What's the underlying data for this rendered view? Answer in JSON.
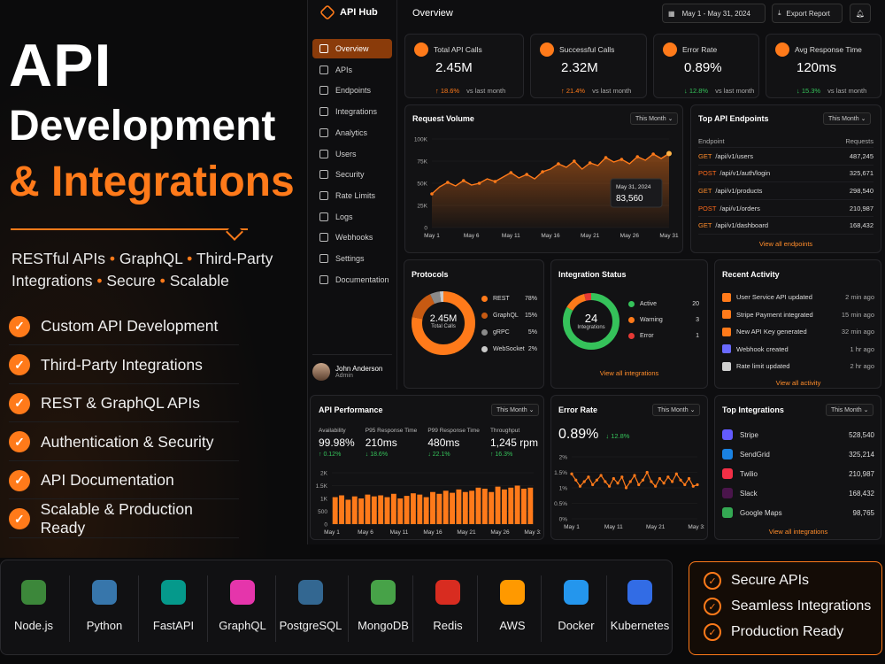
{
  "hero": {
    "title1": "API",
    "title2": "Development",
    "title3": "& Integrations",
    "subtitle_parts": [
      "RESTful APIs",
      "GraphQL",
      "Third-Party",
      "Integrations",
      "Secure",
      "Scalable"
    ],
    "features": [
      "Custom API Development",
      "Third-Party Integrations",
      "REST & GraphQL APIs",
      "Authentication & Security",
      "API Documentation",
      "Scalable & Production Ready"
    ],
    "accent": "#ff7a1a"
  },
  "app": {
    "name": "API Hub",
    "page_title": "Overview",
    "date_range": "May 1 - May 31, 2024",
    "export_label": "Export Report",
    "nav": [
      "Overview",
      "APIs",
      "Endpoints",
      "Integrations",
      "Analytics",
      "Users",
      "Security",
      "Rate Limits",
      "Logs",
      "Webhooks",
      "Settings",
      "Documentation"
    ],
    "user": {
      "name": "John Anderson",
      "role": "Admin"
    }
  },
  "kpis": [
    {
      "label": "Total API Calls",
      "value": "2.45M",
      "delta": "↑ 18.6%",
      "suffix": "vs last month"
    },
    {
      "label": "Successful Calls",
      "value": "2.32M",
      "delta": "↑ 21.4%",
      "suffix": "vs last month"
    },
    {
      "label": "Error Rate",
      "value": "0.89%",
      "delta": "↓ 12.8%",
      "suffix": "vs last month"
    },
    {
      "label": "Avg Response Time",
      "value": "120ms",
      "delta": "↓ 15.3%",
      "suffix": "vs last month"
    }
  ],
  "request_volume": {
    "title": "Request Volume",
    "period": "This Month",
    "tooltip_date": "May 31, 2024",
    "tooltip_value": "83,560"
  },
  "top_endpoints": {
    "title": "Top API Endpoints",
    "period": "This Month",
    "col_endpoint": "Endpoint",
    "col_requests": "Requests",
    "rows": [
      {
        "method": "GET",
        "path": "/api/v1/users",
        "requests": "487,245"
      },
      {
        "method": "POST",
        "path": "/api/v1/auth/login",
        "requests": "325,671"
      },
      {
        "method": "GET",
        "path": "/api/v1/products",
        "requests": "298,540"
      },
      {
        "method": "POST",
        "path": "/api/v1/orders",
        "requests": "210,987"
      },
      {
        "method": "GET",
        "path": "/api/v1/dashboard",
        "requests": "168,432"
      }
    ],
    "link": "View all endpoints"
  },
  "protocols": {
    "title": "Protocols",
    "center_value": "2.45M",
    "center_label": "Total Calls",
    "items": [
      {
        "name": "REST",
        "pct": "78%",
        "color": "#ff7a1a",
        "value": 78
      },
      {
        "name": "GraphQL",
        "pct": "15%",
        "color": "#c75a12",
        "value": 15
      },
      {
        "name": "gRPC",
        "pct": "5%",
        "color": "#8a8a8a",
        "value": 5
      },
      {
        "name": "WebSocket",
        "pct": "2%",
        "color": "#c9c9c9",
        "value": 2
      }
    ]
  },
  "integration_status": {
    "title": "Integration Status",
    "center_value": "24",
    "center_label": "Integrations",
    "items": [
      {
        "name": "Active",
        "count": "20",
        "color": "#35c25a",
        "value": 20
      },
      {
        "name": "Warning",
        "count": "3",
        "color": "#ff7a1a",
        "value": 3
      },
      {
        "name": "Error",
        "count": "1",
        "color": "#e53935",
        "value": 1
      }
    ],
    "link": "View all integrations"
  },
  "recent_activity": {
    "title": "Recent Activity",
    "items": [
      {
        "text": "User Service API updated",
        "time": "2 min ago",
        "color": "#ff7a1a"
      },
      {
        "text": "Stripe Payment integrated",
        "time": "15 min ago",
        "color": "#ff7a1a"
      },
      {
        "text": "New API Key generated",
        "time": "32 min ago",
        "color": "#ff7a1a"
      },
      {
        "text": "Webhook created",
        "time": "1 hr ago",
        "color": "#6a6aff"
      },
      {
        "text": "Rate limit updated",
        "time": "2 hr ago",
        "color": "#cfcfcf"
      }
    ],
    "link": "View all activity"
  },
  "api_performance": {
    "title": "API Performance",
    "period": "This Month",
    "metrics": [
      {
        "label": "Availability",
        "value": "99.98%",
        "delta": "↑ 0.12%"
      },
      {
        "label": "P95 Response Time",
        "value": "210ms",
        "delta": "↓ 18.6%"
      },
      {
        "label": "P99 Response Time",
        "value": "480ms",
        "delta": "↓ 22.1%"
      },
      {
        "label": "Throughput",
        "value": "1,245 rpm",
        "delta": "↑ 16.3%"
      }
    ]
  },
  "error_rate": {
    "title": "Error Rate",
    "period": "This Month",
    "value": "0.89%",
    "delta": "↓ 12.8%"
  },
  "top_integrations": {
    "title": "Top Integrations",
    "period": "This Month",
    "rows": [
      {
        "name": "Stripe",
        "value": "528,540",
        "color": "#635bff"
      },
      {
        "name": "SendGrid",
        "value": "325,214",
        "color": "#1a82e2"
      },
      {
        "name": "Twilio",
        "value": "210,987",
        "color": "#f22f46"
      },
      {
        "name": "Slack",
        "value": "168,432",
        "color": "#4a154b"
      },
      {
        "name": "Google Maps",
        "value": "98,765",
        "color": "#34a853"
      }
    ],
    "link": "View all integrations"
  },
  "tech": [
    "Node.js",
    "Python",
    "FastAPI",
    "GraphQL",
    "PostgreSQL",
    "MongoDB",
    "Redis",
    "AWS",
    "Docker",
    "Kubernetes"
  ],
  "badges": [
    "Secure APIs",
    "Seamless Integrations",
    "Production Ready"
  ],
  "chart_data": [
    {
      "type": "area",
      "title": "Request Volume",
      "x": [
        "May 1",
        "May 2",
        "May 3",
        "May 4",
        "May 5",
        "May 6",
        "May 7",
        "May 8",
        "May 9",
        "May 10",
        "May 11",
        "May 12",
        "May 13",
        "May 14",
        "May 15",
        "May 16",
        "May 17",
        "May 18",
        "May 19",
        "May 20",
        "May 21",
        "May 22",
        "May 23",
        "May 24",
        "May 25",
        "May 26",
        "May 27",
        "May 28",
        "May 29",
        "May 30",
        "May 31"
      ],
      "tick_labels": [
        "May 1",
        "May 6",
        "May 11",
        "May 16",
        "May 21",
        "May 26",
        "May 31"
      ],
      "y_ticks": [
        "0",
        "25K",
        "50K",
        "75K",
        "100K"
      ],
      "values": [
        38000,
        46000,
        51000,
        47000,
        53000,
        48000,
        50000,
        55000,
        52000,
        57000,
        62000,
        56000,
        60000,
        55000,
        63000,
        66000,
        72000,
        68000,
        75000,
        66000,
        73000,
        70000,
        79000,
        74000,
        77000,
        72000,
        80000,
        76000,
        83000,
        78000,
        83560
      ],
      "ylim": [
        0,
        100000
      ]
    },
    {
      "type": "bar",
      "title": "API Performance",
      "tick_labels": [
        "May 1",
        "May 6",
        "May 11",
        "May 16",
        "May 21",
        "May 26",
        "May 31"
      ],
      "y_ticks": [
        "0",
        "500",
        "1K",
        "1.5K",
        "2K"
      ],
      "values": [
        1050,
        1120,
        950,
        1080,
        1000,
        1150,
        1080,
        1120,
        1050,
        1180,
        1000,
        1100,
        1200,
        1150,
        1050,
        1250,
        1180,
        1300,
        1220,
        1350,
        1250,
        1300,
        1420,
        1380,
        1250,
        1460,
        1350,
        1420,
        1500,
        1380,
        1420
      ],
      "ylim": [
        0,
        2000
      ]
    },
    {
      "type": "line",
      "title": "Error Rate",
      "tick_labels": [
        "May 1",
        "May 11",
        "May 21",
        "May 31"
      ],
      "y_ticks": [
        "0%",
        "0.5%",
        "1%",
        "1.5%",
        "2%"
      ],
      "values": [
        1.45,
        1.25,
        1.05,
        1.2,
        1.35,
        1.1,
        1.25,
        1.4,
        1.2,
        1.05,
        1.3,
        1.15,
        1.35,
        1.0,
        1.2,
        1.4,
        1.1,
        1.25,
        1.5,
        1.2,
        1.05,
        1.3,
        1.15,
        1.35,
        1.2,
        1.45,
        1.25,
        1.1,
        1.3,
        1.05,
        1.1
      ],
      "ylim": [
        0,
        2
      ]
    }
  ]
}
